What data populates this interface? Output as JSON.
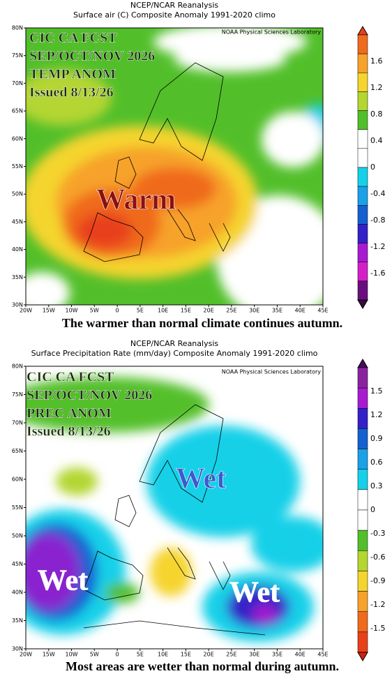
{
  "panels": [
    {
      "header": [
        "NCEP/NCAR Reanalysis",
        "Surface air (C) Composite Anomaly 1991-2020 climo"
      ],
      "credit": "NOAA Physical Sciences Laboratory",
      "overlay": [
        "CIC CA FCST",
        "SEP/OCT/NOV 2026",
        "TEMP ANOM",
        "Issued 8/13/26"
      ],
      "labels": [
        "Warm"
      ],
      "lat_ticks": [
        "80N",
        "75N",
        "70N",
        "65N",
        "60N",
        "55N",
        "50N",
        "45N",
        "40N",
        "35N",
        "30N"
      ],
      "lon_ticks": [
        "20W",
        "15W",
        "10W",
        "5W",
        "0",
        "5E",
        "10E",
        "15E",
        "20E",
        "25E",
        "30E",
        "35E",
        "40E",
        "45E"
      ],
      "colorbar": [
        "1.6",
        "1.2",
        "0.8",
        "0.4",
        "0",
        "-0.4",
        "-0.8",
        "-1.2",
        "-1.6"
      ],
      "caption": "The warmer than normal climate continues autumn."
    },
    {
      "header": [
        "NCEP/NCAR Reanalysis",
        "Surface Precipitation Rate (mm/day) Composite Anomaly 1991-2020 climo"
      ],
      "credit": "NOAA Physical Sciences Laboratory",
      "overlay": [
        "CIC CA FCST",
        "SEP/OCT/NOV 2026",
        "PREC ANOM",
        "Issued 8/13/26"
      ],
      "labels": [
        "Wet",
        "Wet",
        "Wet"
      ],
      "lat_ticks": [
        "80N",
        "75N",
        "70N",
        "65N",
        "60N",
        "55N",
        "50N",
        "45N",
        "40N",
        "35N",
        "30N"
      ],
      "lon_ticks": [
        "20W",
        "15W",
        "10W",
        "5W",
        "0",
        "5E",
        "10E",
        "15E",
        "20E",
        "25E",
        "30E",
        "35E",
        "40E",
        "45E"
      ],
      "colorbar": [
        "1.5",
        "1.2",
        "0.9",
        "0.6",
        "0.3",
        "0",
        "-0.3",
        "-0.6",
        "-0.9",
        "-1.2",
        "-1.5"
      ],
      "caption": "Most areas are wetter than normal during autumn."
    }
  ]
}
